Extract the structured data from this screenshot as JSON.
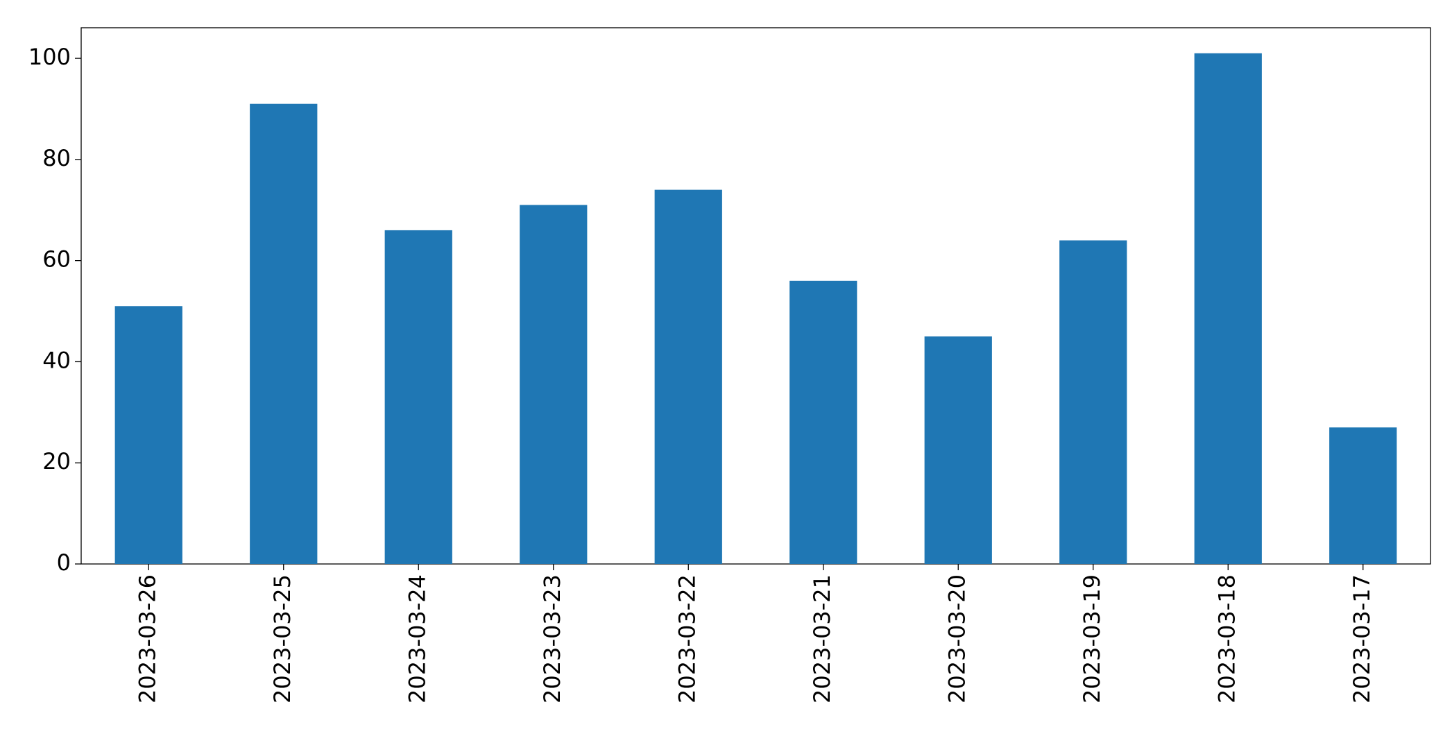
{
  "chart_data": {
    "type": "bar",
    "categories": [
      "2023-03-26",
      "2023-03-25",
      "2023-03-24",
      "2023-03-23",
      "2023-03-22",
      "2023-03-21",
      "2023-03-20",
      "2023-03-19",
      "2023-03-18",
      "2023-03-17"
    ],
    "values": [
      51,
      91,
      66,
      71,
      74,
      56,
      45,
      64,
      101,
      27
    ],
    "color": "#1f77b4",
    "ylim": [
      0,
      106.05
    ],
    "yticks": [
      0,
      20,
      40,
      60,
      80,
      100
    ],
    "grid": false
  }
}
